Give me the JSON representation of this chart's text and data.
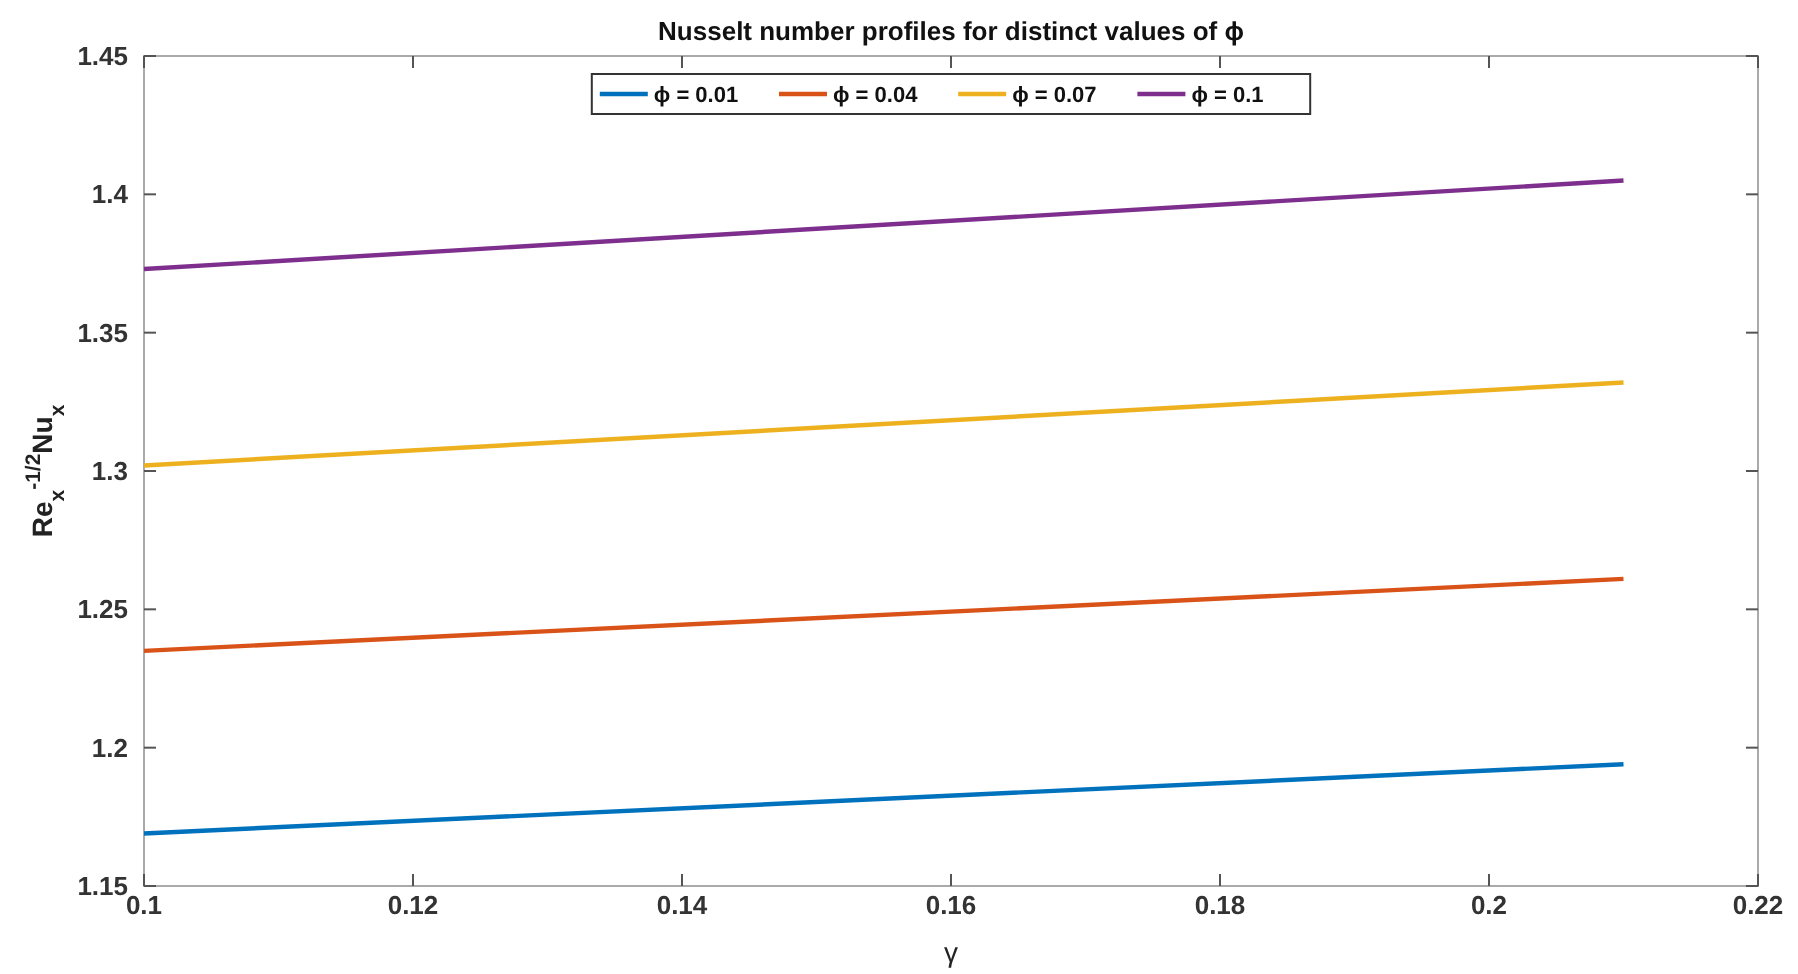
{
  "chart_data": {
    "type": "line",
    "title": "Nusselt number profiles for distinct values of ϕ",
    "xlabel": "γ",
    "ylabel": "Re$_{x}$$^{-1/2}$Nu$_{x}$",
    "x": [
      0.1,
      0.21
    ],
    "series": [
      {
        "name": "ϕ = 0.01",
        "color": "#0072bd",
        "values": [
          1.169,
          1.194
        ]
      },
      {
        "name": "ϕ = 0.04",
        "color": "#d95319",
        "values": [
          1.235,
          1.261
        ]
      },
      {
        "name": "ϕ = 0.07",
        "color": "#edb120",
        "values": [
          1.302,
          1.332
        ]
      },
      {
        "name": "ϕ = 0.1",
        "color": "#7e2f8e",
        "values": [
          1.373,
          1.405
        ]
      }
    ],
    "xlim": [
      0.1,
      0.22
    ],
    "xticks": [
      0.1,
      0.12,
      0.14,
      0.16,
      0.18,
      0.2,
      0.22
    ],
    "ylim": [
      1.15,
      1.45
    ],
    "yticks": [
      1.15,
      1.2,
      1.25,
      1.3,
      1.35,
      1.4,
      1.45
    ],
    "legend": "top",
    "grid": false,
    "marker": "none",
    "line_style": "solid"
  }
}
